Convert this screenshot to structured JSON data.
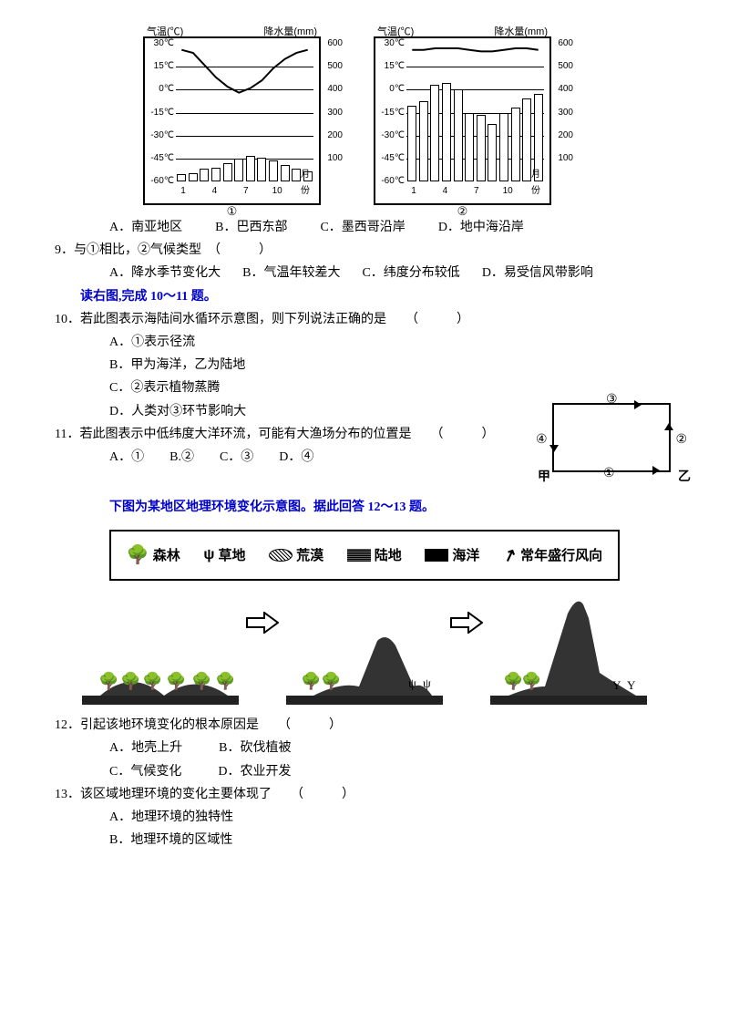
{
  "charts": {
    "left_axis_label": "气温(℃)",
    "right_axis_label": "降水量(mm)",
    "temp_ticks": [
      "30℃",
      "15℃",
      "0℃",
      "-15℃",
      "-30℃",
      "-45℃",
      "-60℃"
    ],
    "precip_ticks": [
      "600",
      "500",
      "400",
      "300",
      "200",
      "100",
      "0"
    ],
    "x_ticks": [
      "1",
      "4",
      "7",
      "10",
      "月份"
    ],
    "chart1": {
      "num": "①",
      "bars": [
        30,
        35,
        55,
        60,
        80,
        100,
        110,
        105,
        90,
        70,
        55,
        45
      ],
      "temp": [
        26,
        24,
        16,
        8,
        2,
        -2,
        1,
        6,
        14,
        20,
        24,
        26
      ]
    },
    "chart2": {
      "num": "②",
      "bars": [
        330,
        350,
        420,
        430,
        400,
        300,
        290,
        250,
        300,
        320,
        360,
        380
      ],
      "temp": [
        26,
        26,
        27,
        27,
        27,
        26,
        25,
        25,
        26,
        27,
        27,
        26
      ]
    }
  },
  "q8": {
    "options": {
      "A": "A．南亚地区",
      "B": "B．巴西东部",
      "C": "C．墨西哥沿岸",
      "D": "D．地中海沿岸"
    }
  },
  "q9": {
    "stem": "9．与①相比，②气候类型　（　　　）",
    "options": {
      "A": "A．降水季节变化大",
      "B": "B．气温年较差大",
      "C": "C．纬度分布较低",
      "D": "D．易受信风带影响"
    }
  },
  "instr1": "读右图,完成 10～11 题。",
  "q10": {
    "stem": "10．若此图表示海陆间水循环示意图，则下列说法正确的是　　（　　　）",
    "options": {
      "A": "A．①表示径流",
      "B": "B．甲为海洋，乙为陆地",
      "C": "C．②表示植物蒸腾",
      "D": "D．人类对③环节影响大"
    }
  },
  "q11": {
    "stem": "11．若此图表示中低纬度大洋环流，可能有大渔场分布的位置是　　（　　　）",
    "options": "A．①　　B.②　　C．③　　D．④"
  },
  "cycle": {
    "top": "③",
    "right": "②",
    "bottom": "①",
    "left": "④",
    "bl": "甲",
    "br": "乙"
  },
  "sectionTitle": "下图为某地区地理环境变化示意图。据此回答 12～13 题。",
  "legend": {
    "forest": "森林",
    "grass": "草地",
    "desert": "荒漠",
    "land": "陆地",
    "ocean": "海洋",
    "wind": "常年盛行风向"
  },
  "q12": {
    "stem": "12．引起该地环境变化的根本原因是　　（　　　）",
    "row1": {
      "A": "A．地壳上升",
      "B": "B．砍伐植被"
    },
    "row2": {
      "C": "C．气候变化",
      "D": "D．农业开发"
    }
  },
  "q13": {
    "stem": "13．该区域地理环境的变化主要体现了　　（　　　）",
    "A": "A．地理环境的独特性",
    "B": "B．地理环境的区域性"
  },
  "colors": {
    "text": "#000000",
    "blue": "#0000cc",
    "bg": "#ffffff",
    "border": "#000000"
  }
}
